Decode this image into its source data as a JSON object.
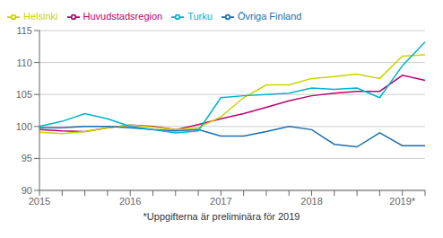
{
  "chart_data": {
    "type": "line",
    "categories": [
      "2015",
      null,
      null,
      null,
      "2016",
      null,
      null,
      null,
      "2017",
      null,
      null,
      null,
      "2018",
      null,
      null,
      null,
      "2019*",
      null
    ],
    "series": [
      {
        "name": "Huvudstadsregion",
        "color": "#c0006e",
        "values": [
          99.5,
          99.3,
          99.2,
          99.8,
          100.2,
          100.0,
          99.5,
          100.3,
          101.2,
          102.0,
          103.0,
          104.0,
          104.8,
          105.2,
          105.5,
          105.5,
          108.0,
          107.2
        ]
      },
      {
        "name": "Helsinki",
        "color": "#c8d400",
        "values": [
          99.1,
          98.9,
          99.2,
          99.8,
          100.2,
          99.9,
          99.5,
          99.8,
          101.5,
          104.5,
          106.5,
          106.5,
          107.5,
          107.8,
          108.2,
          107.5,
          111.0,
          111.2
        ]
      },
      {
        "name": "Övriga Finland",
        "color": "#1a6faf",
        "values": [
          99.8,
          99.8,
          100.0,
          100.0,
          99.8,
          99.5,
          99.3,
          99.5,
          98.5,
          98.5,
          99.2,
          100.0,
          99.5,
          97.2,
          96.8,
          99.0,
          97.0,
          97.0
        ]
      },
      {
        "name": "Turku",
        "color": "#00b4c8",
        "values": [
          100.0,
          100.8,
          102.0,
          101.2,
          100.0,
          99.5,
          99.0,
          99.3,
          104.5,
          104.8,
          105.0,
          105.2,
          106.0,
          105.8,
          106.0,
          104.5,
          109.5,
          113.2
        ]
      }
    ],
    "ylim": [
      90,
      115
    ],
    "yticks": [
      90,
      95,
      100,
      105,
      110,
      115
    ],
    "grid": true,
    "legend": "upper left",
    "annotations": [
      "*Uppgifterna är preliminära för 2019"
    ]
  }
}
